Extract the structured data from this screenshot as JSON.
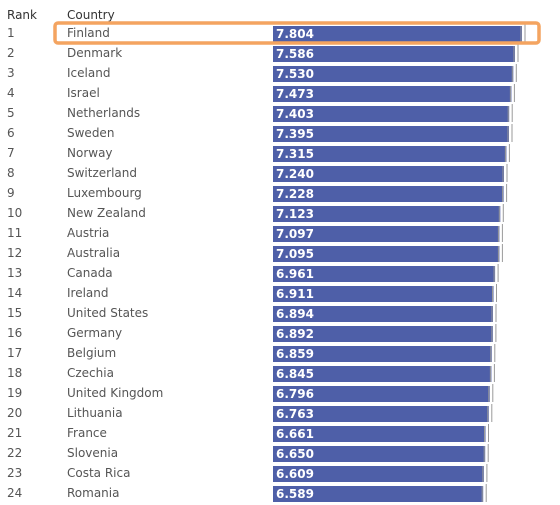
{
  "chart_data": {
    "type": "bar",
    "orientation": "horizontal",
    "column_headers": {
      "rank": "Rank",
      "country": "Country"
    },
    "categories": [
      "Finland",
      "Denmark",
      "Iceland",
      "Israel",
      "Netherlands",
      "Sweden",
      "Norway",
      "Switzerland",
      "Luxembourg",
      "New Zealand",
      "Austria",
      "Australia",
      "Canada",
      "Ireland",
      "United States",
      "Germany",
      "Belgium",
      "Czechia",
      "United Kingdom",
      "Lithuania",
      "France",
      "Slovenia",
      "Costa Rica",
      "Romania"
    ],
    "ranks": [
      "1",
      "2",
      "3",
      "4",
      "5",
      "6",
      "7",
      "8",
      "9",
      "10",
      "11",
      "12",
      "13",
      "14",
      "15",
      "16",
      "17",
      "18",
      "19",
      "20",
      "21",
      "22",
      "23",
      "24"
    ],
    "values": [
      7.804,
      7.586,
      7.53,
      7.473,
      7.403,
      7.395,
      7.315,
      7.24,
      7.228,
      7.123,
      7.097,
      7.095,
      6.961,
      6.911,
      6.894,
      6.892,
      6.859,
      6.845,
      6.796,
      6.763,
      6.661,
      6.65,
      6.609,
      6.589
    ],
    "value_labels": [
      "7.804",
      "7.586",
      "7.530",
      "7.473",
      "7.403",
      "7.395",
      "7.315",
      "7.240",
      "7.228",
      "7.123",
      "7.097",
      "7.095",
      "6.961",
      "6.911",
      "6.894",
      "6.892",
      "6.859",
      "6.845",
      "6.796",
      "6.763",
      "6.661",
      "6.650",
      "6.609",
      "6.589"
    ],
    "xlim": [
      0,
      8.6
    ],
    "grid": false,
    "highlighted_category": "Finland",
    "colors": {
      "bar": "#4e5fa8",
      "highlight_border": "#f4a460",
      "whisker": "#9a9a9a"
    }
  }
}
